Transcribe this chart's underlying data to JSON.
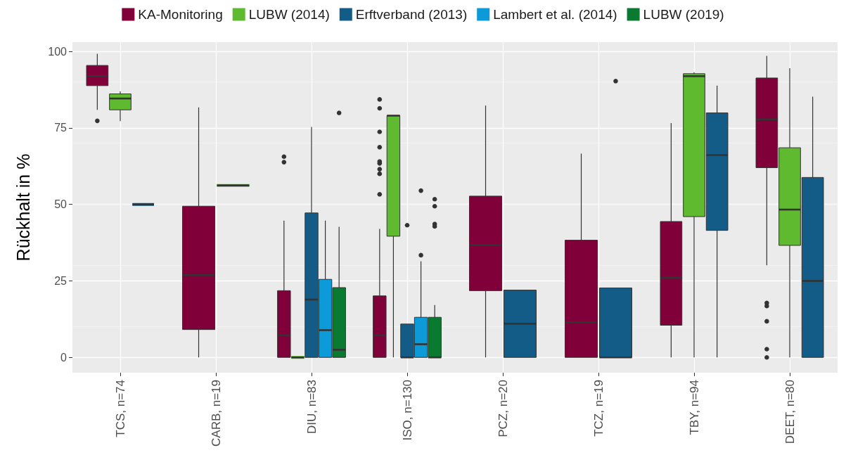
{
  "chart_data": {
    "type": "box",
    "ylabel": "Rückhalt in %",
    "categories": [
      "TCS, n=74",
      "CARB, n=19",
      "DIU, n=83",
      "ISO, n=130",
      "PCZ, n=20",
      "TCZ, n=19",
      "TBY, n=94",
      "DEET, n=80"
    ],
    "ylim": [
      -5,
      103
    ],
    "yticks": [
      0,
      25,
      50,
      75,
      100
    ],
    "grid": true,
    "legend": "top",
    "series": [
      {
        "name": "KA-Monitoring",
        "color": "#80003a",
        "boxes": [
          {
            "low": 80.9,
            "q1": 88.8,
            "median": 91.9,
            "q3": 95.4,
            "high": 99.2,
            "outliers": [
              77.3
            ]
          },
          {
            "low": 0,
            "q1": 9.1,
            "median": 26.9,
            "q3": 49.4,
            "high": 81.7
          },
          {
            "low": 0,
            "q1": 0,
            "median": 7.2,
            "q3": 21.8,
            "high": 44.7,
            "outliers": [
              65.6,
              63.8
            ]
          },
          {
            "low": 0,
            "q1": 0,
            "median": 7.2,
            "q3": 20.1,
            "high": 42.0,
            "outliers": [
              84.3,
              81.4,
              73.7,
              68.7,
              64.0,
              63.4,
              61.5,
              60.0,
              53.3
            ]
          },
          {
            "low": 0,
            "q1": 21.8,
            "median": 36.7,
            "q3": 52.7,
            "high": 82.3
          },
          {
            "low": 0,
            "q1": 0,
            "median": 11.4,
            "q3": 38.3,
            "high": 66.6
          },
          {
            "low": 0,
            "q1": 10.5,
            "median": 26.0,
            "q3": 44.4,
            "high": 76.6
          },
          {
            "low": 30.1,
            "q1": 62.0,
            "median": 77.8,
            "q3": 91.3,
            "high": 98.5,
            "outliers": [
              17.8,
              16.8,
              11.8,
              2.7,
              0
            ]
          }
        ]
      },
      {
        "name": "LUBW (2014)",
        "color": "#5fba30",
        "boxes": [
          {
            "low": 77.2,
            "q1": 80.9,
            "median": 84.6,
            "q3": 86.1,
            "high": 86.9
          },
          {
            "low": 56.2,
            "q1": 56.2,
            "median": 56.2,
            "q3": 56.2,
            "high": 56.2
          },
          {
            "low": 0,
            "q1": 0,
            "median": 0,
            "q3": 0,
            "high": 0
          },
          {
            "low": 0,
            "q1": 39.6,
            "median": 79.0,
            "q3": 79.0,
            "high": 79.0
          },
          null,
          null,
          {
            "low": 0,
            "q1": 46.0,
            "median": 91.9,
            "q3": 92.7,
            "high": 93.2
          },
          {
            "low": 0,
            "q1": 36.6,
            "median": 48.3,
            "q3": 68.5,
            "high": 94.5
          }
        ]
      },
      {
        "name": "Erftverband (2013)",
        "color": "#135c88",
        "boxes": [
          {
            "low": 50,
            "q1": 50,
            "median": 50,
            "q3": 50,
            "high": 50
          },
          null,
          {
            "low": 0,
            "q1": 0,
            "median": 18.9,
            "q3": 47.2,
            "high": 75.3
          },
          {
            "low": 0,
            "q1": 0,
            "median": 0,
            "q3": 10.9,
            "high": 10.9,
            "outliers": [
              43.2
            ]
          },
          {
            "low": 0,
            "q1": 0,
            "median": 11.0,
            "q3": 22.0,
            "high": 22.0
          },
          {
            "low": 0,
            "q1": 0,
            "median": 0,
            "q3": 22.7,
            "high": 22.7,
            "outliers": [
              90.3
            ]
          },
          {
            "low": 0,
            "q1": 41.5,
            "median": 66.1,
            "q3": 79.9,
            "high": 88.8
          },
          {
            "low": 0,
            "q1": 0,
            "median": 25.0,
            "q3": 58.8,
            "high": 85.2
          }
        ]
      },
      {
        "name": "Lambert et al. (2014)",
        "color": "#0c9ad8",
        "boxes": [
          null,
          null,
          {
            "low": 0,
            "q1": 0,
            "median": 8.9,
            "q3": 25.5,
            "high": 44.7
          },
          {
            "low": 0,
            "q1": 0,
            "median": 4.3,
            "q3": 13.1,
            "high": 31.4,
            "outliers": [
              54.5,
              33.4
            ]
          },
          null,
          null,
          null,
          null
        ]
      },
      {
        "name": "LUBW (2019)",
        "color": "#0a7a30",
        "boxes": [
          null,
          null,
          {
            "low": 0,
            "q1": 0,
            "median": 2.5,
            "q3": 22.8,
            "high": 42.7,
            "outliers": [
              79.9
            ]
          },
          {
            "low": 0,
            "q1": 0,
            "median": 0,
            "q3": 13.1,
            "high": 17.1,
            "outliers": [
              51.7,
              49.4,
              43.6,
              42.8
            ]
          },
          null,
          null,
          null,
          null
        ]
      }
    ]
  }
}
